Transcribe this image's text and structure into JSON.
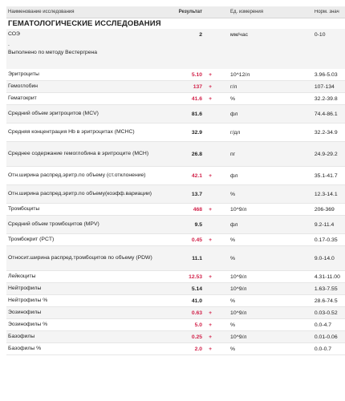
{
  "columns": {
    "name": "Наименование исследования",
    "result": "Результат",
    "unit": "Ед. измерения",
    "norm": "Норм. знач"
  },
  "section": "ГЕМАТОЛОГИЧЕСКИЕ ИССЛЕДОВАНИЯ",
  "esr": {
    "name": "СОЭ",
    "result": "2",
    "unit": "мм/час",
    "norm": "0-10",
    "dot": ".",
    "note": "Выполнено по методу Вестергрена"
  },
  "rows": [
    {
      "name": "Эритроциты",
      "result": "5.10",
      "flag": "+",
      "unit": "10^12/л",
      "norm": "3.96-5.03"
    },
    {
      "name": "Гемоглобин",
      "result": "137",
      "flag": "+",
      "unit": "г/л",
      "norm": "107-134"
    },
    {
      "name": "Гематокрит",
      "result": "41.6",
      "flag": "+",
      "unit": "%",
      "norm": "32.2-39.8"
    },
    {
      "name": "Средний объем эритроцитов (MCV)",
      "result": "81.6",
      "flag": "",
      "unit": "фл",
      "norm": "74.4-86.1"
    },
    {
      "name": "Средняя концентрация Hb в эритроцитах (MCHC)",
      "result": "32.9",
      "flag": "",
      "unit": "г/дл",
      "norm": "32.2-34.9"
    },
    {
      "name": "Среднее содержание гемоглобина в эритроците (MCH)",
      "result": "26.8",
      "flag": "",
      "unit": "пг",
      "norm": "24.9-29.2"
    },
    {
      "name": "Отн.ширина распред.эритр.по объему (ст.отклонение)",
      "result": "42.1",
      "flag": "+",
      "unit": "фл",
      "norm": "35.1-41.7"
    },
    {
      "name": "Отн.ширина распред.эритр.по объему(коэфф.вариации)",
      "result": "13.7",
      "flag": "",
      "unit": "%",
      "norm": "12.3-14.1"
    },
    {
      "name": "Тромбоциты",
      "result": "468",
      "flag": "+",
      "unit": "10^9/л",
      "norm": "206-369"
    },
    {
      "name": "Средний объем тромбоцитов (MPV)",
      "result": "9.5",
      "flag": "",
      "unit": "фл",
      "norm": "9.2-11.4"
    },
    {
      "name": "Тромбокрит (PCT)",
      "result": "0.45",
      "flag": "+",
      "unit": "%",
      "norm": "0.17-0.35"
    },
    {
      "name": "Относит.ширина распред.тромбоцитов по объему (PDW)",
      "result": "11.1",
      "flag": "",
      "unit": "%",
      "norm": "9.0-14.0"
    },
    {
      "name": "Лейкоциты",
      "result": "12.53",
      "flag": "+",
      "unit": "10^9/л",
      "norm": "4.31-11.00"
    },
    {
      "name": "Нейтрофилы",
      "result": "5.14",
      "flag": "",
      "unit": "10^9/л",
      "norm": "1.63-7.55"
    },
    {
      "name": "Нейтрофилы %",
      "result": "41.0",
      "flag": "",
      "unit": "%",
      "norm": "28.6-74.5"
    },
    {
      "name": "Эозинофилы",
      "result": "0.63",
      "flag": "+",
      "unit": "10^9/л",
      "norm": "0.03-0.52"
    },
    {
      "name": "Эозинофилы %",
      "result": "5.0",
      "flag": "+",
      "unit": "%",
      "norm": "0.0-4.7"
    },
    {
      "name": "Базофилы",
      "result": "0.25",
      "flag": "+",
      "unit": "10^9/л",
      "norm": "0.01-0.06"
    },
    {
      "name": "Базофилы %",
      "result": "2.0",
      "flag": "+",
      "unit": "%",
      "norm": "0.0-0.7"
    }
  ],
  "colors": {
    "flag": "#d2224a",
    "header_bg": "#ececec",
    "row_shade": "#f4f4f4"
  }
}
